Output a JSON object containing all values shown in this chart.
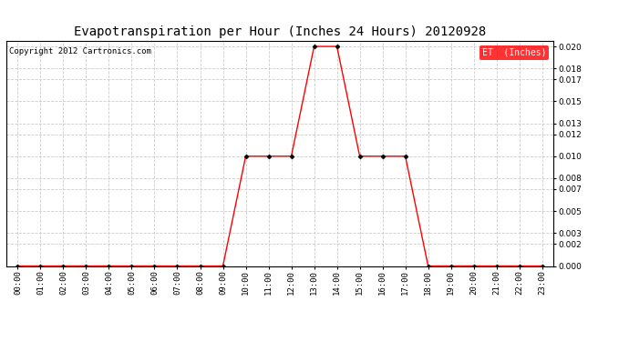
{
  "title": "Evapotranspiration per Hour (Inches 24 Hours) 20120928",
  "copyright": "Copyright 2012 Cartronics.com",
  "legend_label": "ET  (Inches)",
  "legend_bg": "#FF0000",
  "legend_text_color": "#FFFFFF",
  "x_labels": [
    "00:00",
    "01:00",
    "02:00",
    "03:00",
    "04:00",
    "05:00",
    "06:00",
    "07:00",
    "08:00",
    "09:00",
    "10:00",
    "11:00",
    "12:00",
    "13:00",
    "14:00",
    "15:00",
    "16:00",
    "17:00",
    "18:00",
    "19:00",
    "20:00",
    "21:00",
    "22:00",
    "23:00"
  ],
  "y_values": [
    0.0,
    0.0,
    0.0,
    0.0,
    0.0,
    0.0,
    0.0,
    0.0,
    0.0,
    0.0,
    0.01,
    0.01,
    0.01,
    0.02,
    0.02,
    0.01,
    0.01,
    0.01,
    0.0,
    0.0,
    0.0,
    0.0,
    0.0,
    0.0
  ],
  "y_ticks": [
    0.0,
    0.002,
    0.003,
    0.005,
    0.007,
    0.008,
    0.01,
    0.012,
    0.013,
    0.015,
    0.017,
    0.018,
    0.02
  ],
  "line_color": "#FF0000",
  "marker": "D",
  "marker_color": "#000000",
  "marker_size": 2.5,
  "grid_color": "#CCCCCC",
  "background_color": "#FFFFFF",
  "title_fontsize": 10,
  "copyright_fontsize": 6.5,
  "axis_fontsize": 6.5,
  "legend_fontsize": 7,
  "ylim": [
    0.0,
    0.0205
  ]
}
